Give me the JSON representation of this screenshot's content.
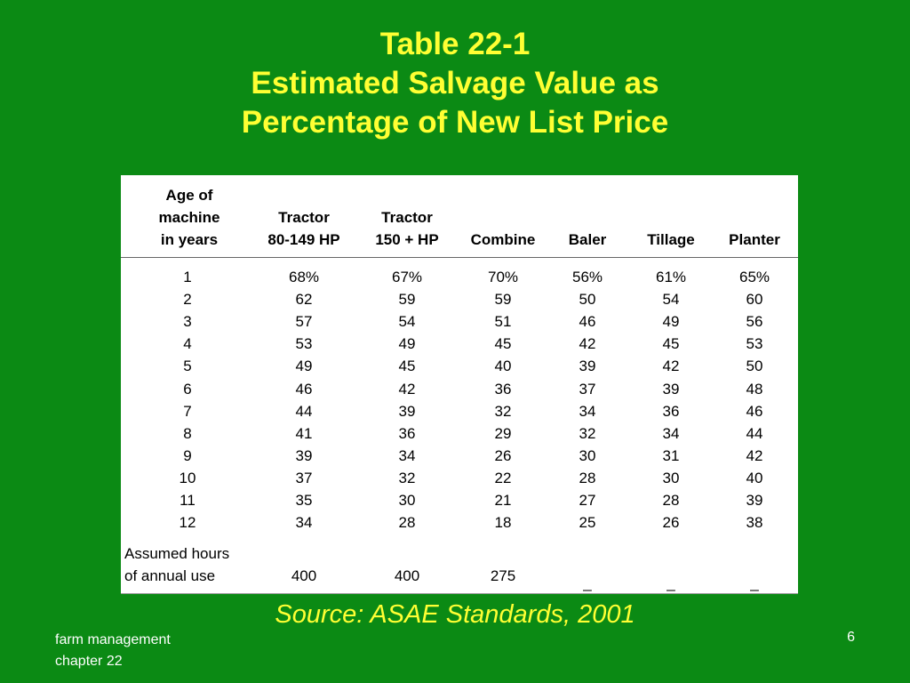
{
  "slide": {
    "title_lines": [
      "Table 22-1",
      "Estimated Salvage Value as",
      "Percentage of New List Price"
    ],
    "source": "Source:  ASAE Standards, 2001",
    "footer_line1": "farm management",
    "footer_line2": "chapter 22",
    "page_number": "6"
  },
  "table": {
    "age_header": [
      "Age of",
      "machine",
      "in years"
    ],
    "columns": [
      {
        "line1": "Tractor",
        "line2": "80-149 HP"
      },
      {
        "line1": "Tractor",
        "line2": "150 + HP"
      },
      {
        "line1": "",
        "line2": "Combine"
      },
      {
        "line1": "",
        "line2": "Baler"
      },
      {
        "line1": "",
        "line2": "Tillage"
      },
      {
        "line1": "",
        "line2": "Planter"
      }
    ],
    "rows": [
      {
        "age": "1",
        "values": [
          "68%",
          "67%",
          "70%",
          "56%",
          "61%",
          "65%"
        ]
      },
      {
        "age": "2",
        "values": [
          "62",
          "59",
          "59",
          "50",
          "54",
          "60"
        ]
      },
      {
        "age": "3",
        "values": [
          "57",
          "54",
          "51",
          "46",
          "49",
          "56"
        ]
      },
      {
        "age": "4",
        "values": [
          "53",
          "49",
          "45",
          "42",
          "45",
          "53"
        ]
      },
      {
        "age": "5",
        "values": [
          "49",
          "45",
          "40",
          "39",
          "42",
          "50"
        ]
      },
      {
        "age": "6",
        "values": [
          "46",
          "42",
          "36",
          "37",
          "39",
          "48"
        ]
      },
      {
        "age": "7",
        "values": [
          "44",
          "39",
          "32",
          "34",
          "36",
          "46"
        ]
      },
      {
        "age": "8",
        "values": [
          "41",
          "36",
          "29",
          "32",
          "34",
          "44"
        ]
      },
      {
        "age": "9",
        "values": [
          "39",
          "34",
          "26",
          "30",
          "31",
          "42"
        ]
      },
      {
        "age": "10",
        "values": [
          "37",
          "32",
          "22",
          "28",
          "30",
          "40"
        ]
      },
      {
        "age": "11",
        "values": [
          "35",
          "30",
          "21",
          "27",
          "28",
          "39"
        ]
      },
      {
        "age": "12",
        "values": [
          "34",
          "28",
          "18",
          "25",
          "26",
          "38"
        ]
      }
    ],
    "hours_label": [
      "Assumed hours",
      "of annual use"
    ],
    "hours_values": [
      "400",
      "400",
      "275",
      "_",
      "_",
      "_"
    ]
  }
}
